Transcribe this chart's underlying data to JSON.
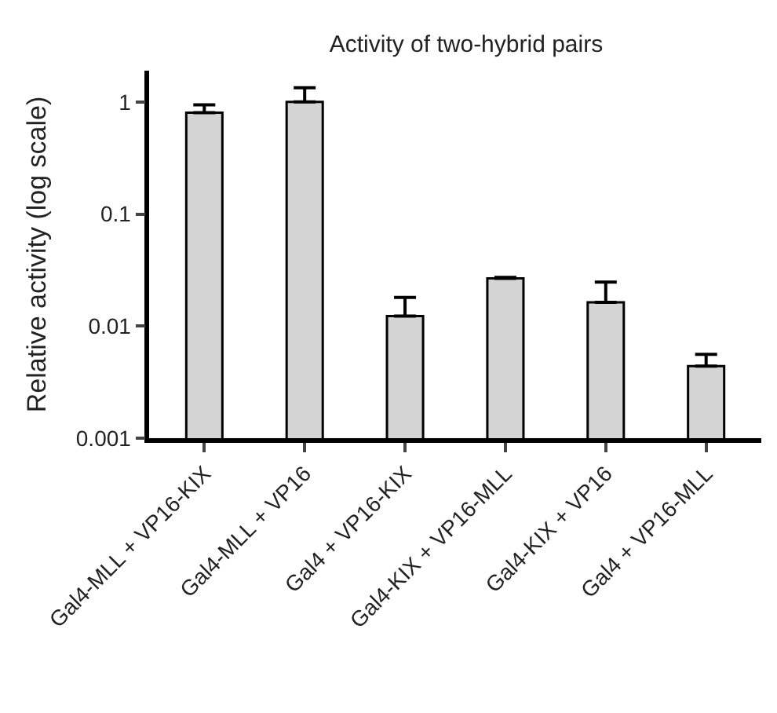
{
  "chart_data": {
    "type": "bar",
    "title": "Activity of two-hybrid pairs",
    "ylabel": "Relative activity (log scale)",
    "categories": [
      "Gal4-MLL + VP16-KIX",
      "Gal4-MLL + VP16",
      "Gal4 + VP16-KIX",
      "Gal4-KIX + VP16-MLL",
      "Gal4-KIX + VP16",
      "Gal4 + VP16-MLL"
    ],
    "values": [
      0.8,
      1.0,
      0.0123,
      0.0267,
      0.0163,
      0.0044
    ],
    "errors": [
      [
        0.8,
        0.94
      ],
      [
        1.0,
        1.34
      ],
      [
        0.0123,
        0.018
      ],
      [
        0.0267,
        0.0272
      ],
      [
        0.0163,
        0.0247
      ],
      [
        0.0044,
        0.0056
      ]
    ],
    "color": "#d4d4d4",
    "log": "y",
    "ylim": [
      0.001,
      1.9
    ],
    "yticks": [
      0.001,
      0.01,
      0.1,
      1
    ],
    "grid": false,
    "legend": false
  }
}
